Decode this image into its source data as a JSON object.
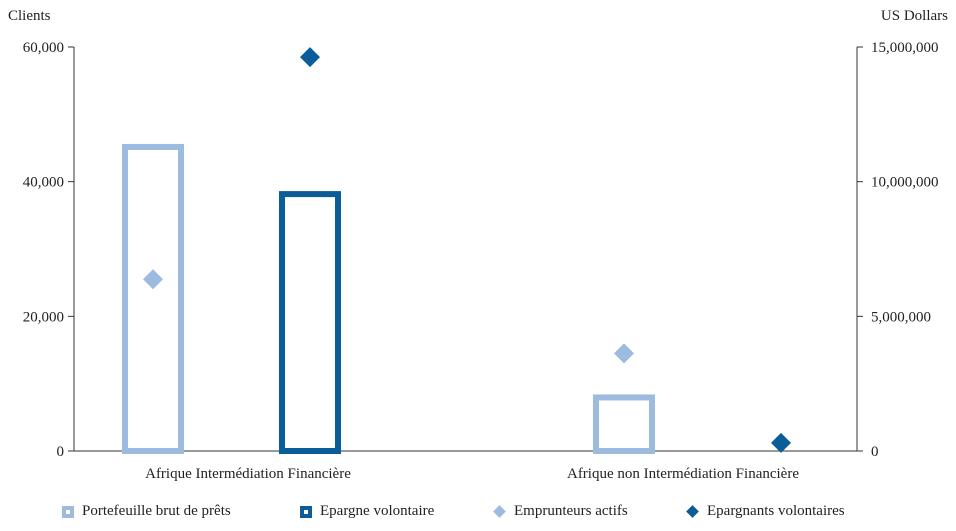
{
  "chart_data": {
    "type": "bar",
    "categories": [
      "Afrique Intermédiation Financière",
      "Afrique non  Intermédiation Financière"
    ],
    "left_axis": {
      "label": "Clients",
      "range": [
        0,
        60000
      ],
      "ticks": [
        "0",
        "20,000",
        "40,000",
        "60,000"
      ],
      "tick_values": [
        0,
        20000,
        40000,
        60000
      ]
    },
    "right_axis": {
      "label": "US Dollars",
      "range": [
        0,
        15000000
      ],
      "ticks": [
        "0",
        "5,000,000",
        "10,000,000",
        "15,000,000"
      ],
      "tick_values": [
        0,
        5000000,
        10000000,
        15000000
      ]
    },
    "grid": false,
    "legend_position": "bottom",
    "series": [
      {
        "name": "Portefeuille brut de prêts",
        "kind": "bar",
        "axis": "right",
        "color": "#9dbadf",
        "values": [
          11400000,
          2100000
        ]
      },
      {
        "name": "Epargne volontaire",
        "kind": "bar",
        "axis": "right",
        "color": "#0b5d9a",
        "values": [
          9650000,
          null
        ]
      },
      {
        "name": "Emprunteurs actifs",
        "kind": "point",
        "axis": "left",
        "color": "#9dbadf",
        "values": [
          25500,
          14500
        ]
      },
      {
        "name": "Epargnants volontaires",
        "kind": "point",
        "axis": "left",
        "color": "#0b5d9a",
        "values": [
          58500,
          1200
        ]
      }
    ]
  }
}
